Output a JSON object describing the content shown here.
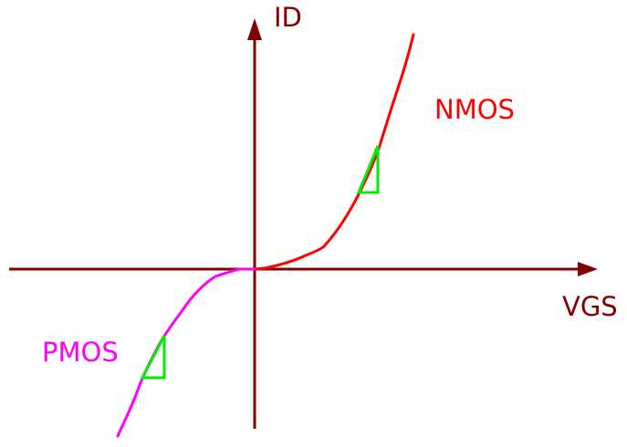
{
  "axes": {
    "x_label": "VGS",
    "y_label": "ID",
    "color": "#800000"
  },
  "curves": {
    "nmos": {
      "label": "NMOS",
      "color": "#ff0000"
    },
    "pmos": {
      "label": "PMOS",
      "color": "#ff00ff"
    }
  },
  "slope_markers": {
    "color": "#00ee00"
  }
}
